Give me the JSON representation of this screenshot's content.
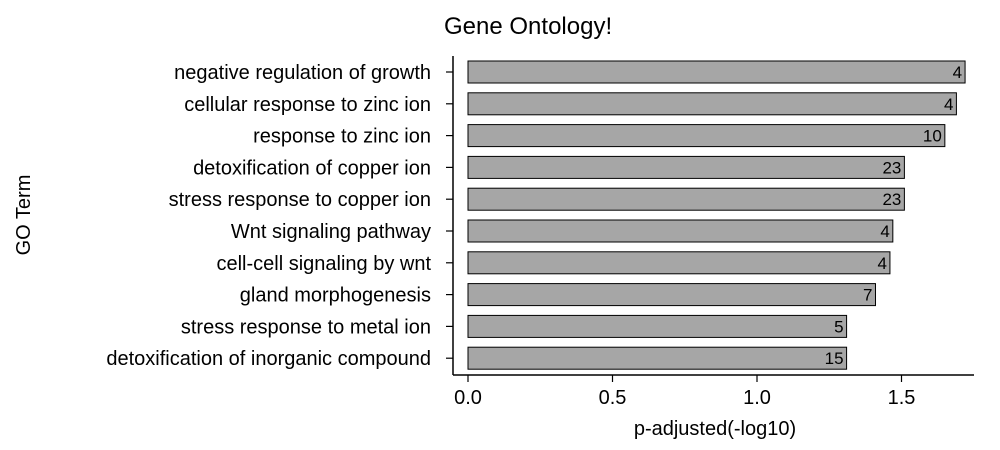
{
  "chart_data": {
    "type": "bar",
    "orientation": "horizontal",
    "title": "Gene Ontology!",
    "xlabel": "p-adjusted(-log10)",
    "ylabel": "GO Term",
    "xlim": [
      0,
      1.8
    ],
    "xticks": [
      "0.0",
      "0.5",
      "1.0",
      "1.5"
    ],
    "categories": [
      "negative regulation of growth",
      "cellular response to zinc ion",
      "response to zinc ion",
      "detoxification of copper ion",
      "stress response to copper ion",
      "Wnt signaling pathway",
      "cell-cell signaling by wnt",
      "gland morphogenesis",
      "stress response to metal ion",
      "detoxification of inorganic compound"
    ],
    "values": [
      1.72,
      1.69,
      1.65,
      1.51,
      1.51,
      1.47,
      1.46,
      1.41,
      1.31,
      1.31
    ],
    "counts": [
      "4",
      "4",
      "10",
      "23",
      "23",
      "4",
      "4",
      "7",
      "5",
      "15"
    ],
    "bar_color": "#a6a6a6",
    "grid": false,
    "legend": "none"
  }
}
